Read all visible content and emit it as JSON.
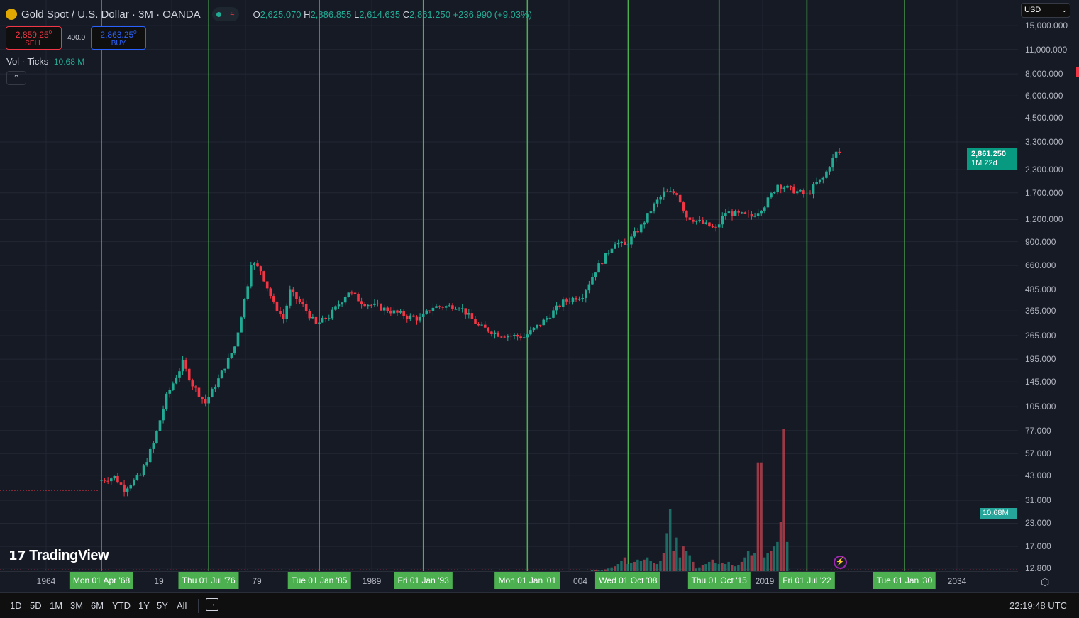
{
  "header": {
    "symbol": "Gold Spot / U.S. Dollar · 3M · OANDA",
    "open_label": "O",
    "open": "2,625.070",
    "high_label": "H",
    "high": "2,886.855",
    "low_label": "L",
    "low": "2,614.635",
    "close_label": "C",
    "close": "2,861.250",
    "change": "+236.990 (+9.03%)"
  },
  "trade": {
    "sell_price": "2,859.25",
    "sell_sup": "0",
    "sell_label": "SELL",
    "spread": "400.0",
    "buy_price": "2,863.25",
    "buy_sup": "0",
    "buy_label": "BUY"
  },
  "volume_indicator": {
    "label": "Vol · Ticks",
    "value": "10.68 M"
  },
  "currency": "USD",
  "price_axis": {
    "ticks": [
      "15,000.000",
      "11,000.000",
      "8,000.000",
      "6,000.000",
      "4,500.000",
      "3,300.000",
      "2,300.000",
      "1,700.000",
      "1,200.000",
      "900.000",
      "660.000",
      "485.000",
      "365.000",
      "265.000",
      "195.000",
      "145.000",
      "105.000",
      "77.000",
      "57.000",
      "43.000",
      "31.000",
      "23.000",
      "17.000",
      "12.800"
    ],
    "last_price": "2,861.250",
    "countdown": "1M 22d",
    "volume_badge": "10.68M"
  },
  "time_axis": {
    "years": [
      "1964",
      "19",
      "79",
      "1989",
      "004",
      "2019",
      "2034"
    ],
    "markers": [
      "Mon 01 Apr '68",
      "Thu 01 Jul '76",
      "Tue 01 Jan '85",
      "Fri 01 Jan '93",
      "Mon 01 Jan '01",
      "Wed 01 Oct '08",
      "Thu 01 Oct '15",
      "Fri 01 Jul '22",
      "Tue 01 Jan '30"
    ]
  },
  "toolbar": {
    "ranges": [
      "1D",
      "5D",
      "1M",
      "3M",
      "6M",
      "YTD",
      "1Y",
      "5Y",
      "All"
    ],
    "clock": "22:19:48 UTC"
  },
  "brand": "TradingView",
  "colors": {
    "up": "#22ab94",
    "down": "#f23645",
    "marker": "#4caf50",
    "background": "#161a25"
  },
  "chart_data": {
    "type": "candlestick",
    "scale": "log",
    "interval": "3M",
    "price_anchors": [
      [
        1968.25,
        40
      ],
      [
        1969.5,
        42
      ],
      [
        1970.25,
        36
      ],
      [
        1971.5,
        43
      ],
      [
        1972.5,
        65
      ],
      [
        1973.5,
        120
      ],
      [
        1974.75,
        185
      ],
      [
        1975.5,
        140
      ],
      [
        1976.5,
        110
      ],
      [
        1977.5,
        150
      ],
      [
        1978.75,
        230
      ],
      [
        1979.75,
        520
      ],
      [
        1980.0,
        690
      ],
      [
        1980.75,
        620
      ],
      [
        1981.75,
        400
      ],
      [
        1982.5,
        330
      ],
      [
        1983.0,
        470
      ],
      [
        1984.0,
        390
      ],
      [
        1985.0,
        305
      ],
      [
        1986.0,
        340
      ],
      [
        1987.5,
        470
      ],
      [
        1988.5,
        410
      ],
      [
        1990.0,
        380
      ],
      [
        1992.0,
        340
      ],
      [
        1993.0,
        330
      ],
      [
        1994.0,
        385
      ],
      [
        1996.0,
        390
      ],
      [
        1997.5,
        300
      ],
      [
        1999.0,
        270
      ],
      [
        2001.0,
        260
      ],
      [
        2002.5,
        320
      ],
      [
        2004.0,
        410
      ],
      [
        2005.5,
        450
      ],
      [
        2006.5,
        620
      ],
      [
        2008.0,
        900
      ],
      [
        2008.75,
        850
      ],
      [
        2010.0,
        1100
      ],
      [
        2011.0,
        1450
      ],
      [
        2011.75,
        1700
      ],
      [
        2012.75,
        1700
      ],
      [
        2013.5,
        1250
      ],
      [
        2015.75,
        1060
      ],
      [
        2016.5,
        1320
      ],
      [
        2018.5,
        1250
      ],
      [
        2019.5,
        1450
      ],
      [
        2020.5,
        1900
      ],
      [
        2021.5,
        1780
      ],
      [
        2022.75,
        1650
      ],
      [
        2023.5,
        1930
      ],
      [
        2024.0,
        2050
      ],
      [
        2024.75,
        2650
      ],
      [
        2025.0,
        2861
      ]
    ],
    "volume_start": 2006.0,
    "volume_millions": [
      12.9,
      13,
      13.2,
      13.4,
      13.6,
      14,
      14.5,
      15,
      16,
      17.5,
      19,
      16,
      16.5,
      17,
      18,
      17.5,
      18,
      19,
      17.5,
      16.5,
      16,
      17.5,
      21,
      30,
      41,
      22,
      28,
      19,
      24,
      22,
      20,
      17,
      14,
      14.5,
      15.5,
      16,
      17,
      18,
      16.5,
      16,
      16.5,
      16,
      17,
      15.5,
      15,
      15.5,
      17,
      19,
      22,
      20,
      21,
      62,
      62,
      19,
      21,
      22,
      24,
      26,
      35,
      77,
      26
    ]
  }
}
